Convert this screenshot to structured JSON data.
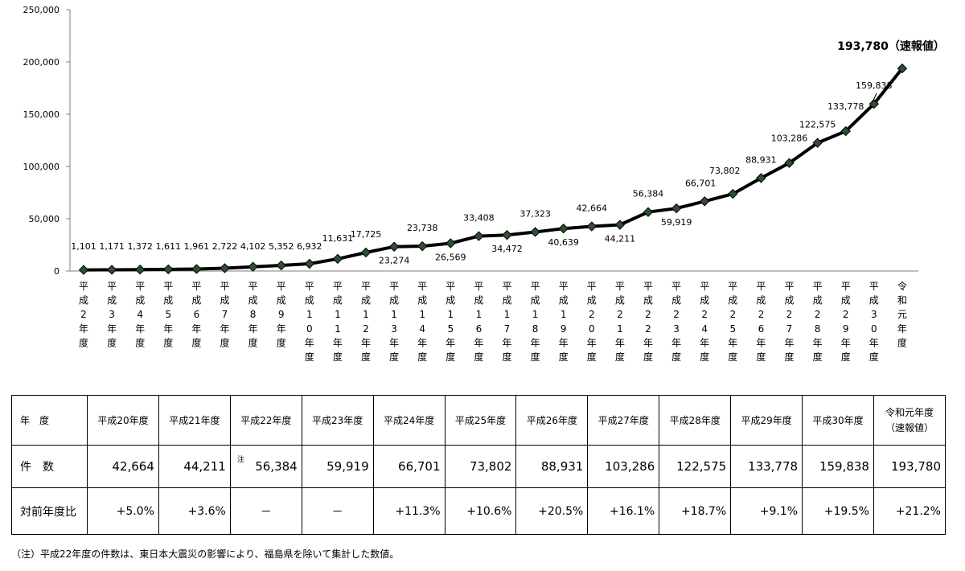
{
  "chart_data": {
    "type": "line",
    "categories": [
      "平成2年度",
      "平成3年度",
      "平成4年度",
      "平成5年度",
      "平成6年度",
      "平成7年度",
      "平成8年度",
      "平成9年度",
      "平成10年度",
      "平成11年度",
      "平成12年度",
      "平成13年度",
      "平成14年度",
      "平成15年度",
      "平成16年度",
      "平成17年度",
      "平成18年度",
      "平成19年度",
      "平成20年度",
      "平成21年度",
      "平成22年度",
      "平成23年度",
      "平成24年度",
      "平成25年度",
      "平成26年度",
      "平成27年度",
      "平成28年度",
      "平成29年度",
      "平成30年度",
      "令和元年度"
    ],
    "values": [
      1101,
      1171,
      1372,
      1611,
      1961,
      2722,
      4102,
      5352,
      6932,
      11631,
      17725,
      23274,
      23738,
      26569,
      33408,
      34472,
      37323,
      40639,
      42664,
      44211,
      56384,
      59919,
      66701,
      73802,
      88931,
      103286,
      122575,
      133778,
      159838,
      193780
    ],
    "value_labels": [
      "1,101",
      "1,171",
      "1,372",
      "1,611",
      "1,961",
      "2,722",
      "4,102",
      "5,352",
      "6,932",
      "11,631",
      "17,725",
      "23,274",
      "23,738",
      "26,569",
      "33,408",
      "34,472",
      "37,323",
      "40,639",
      "42,664",
      "44,211",
      "56,384",
      "59,919",
      "66,701",
      "73,802",
      "88,931",
      "103,286",
      "122,575",
      "133,778",
      "159,838",
      "193,780（速報値）"
    ],
    "yticks": [
      "0",
      "50,000",
      "100,000",
      "150,000",
      "200,000",
      "250,000"
    ],
    "ylim": [
      0,
      250000
    ],
    "grid": false,
    "legend": "none",
    "marker": "diamond",
    "colors": {
      "line": "#000000",
      "marker_fill": "#2f4f2f"
    }
  },
  "table": {
    "rows": [
      {
        "header": "年　度",
        "cells": [
          "平成20年度",
          "平成21年度",
          "平成22年度",
          "平成23年度",
          "平成24年度",
          "平成25年度",
          "平成26年度",
          "平成27年度",
          "平成28年度",
          "平成29年度",
          "平成30年度",
          "令和元年度"
        ],
        "last_sub": "（速報値）"
      },
      {
        "header": "件　数",
        "note_mark": "注",
        "cells": [
          "42,664",
          "44,211",
          "56,384",
          "59,919",
          "66,701",
          "73,802",
          "88,931",
          "103,286",
          "122,575",
          "133,778",
          "159,838",
          "193,780"
        ]
      },
      {
        "header": "対前年度比",
        "cells": [
          "+5.0%",
          "+3.6%",
          "－",
          "－",
          "+11.3%",
          "+10.6%",
          "+20.5%",
          "+16.1%",
          "+18.7%",
          "+9.1%",
          "+19.5%",
          "+21.2%"
        ]
      }
    ]
  },
  "footnote": "（注）平成22年度の件数は、東日本大震災の影響により、福島県を除いて集計した数値。"
}
